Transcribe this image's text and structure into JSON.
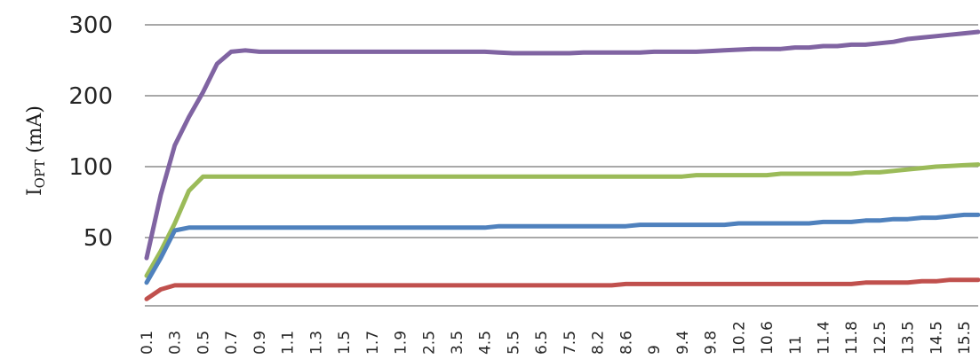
{
  "chart_data": {
    "type": "line",
    "title": "",
    "xlabel": "",
    "ylabel": "I",
    "ylabel_subscript": "OPT",
    "ylabel_unit": " (mA)",
    "grid": true,
    "legend": "none",
    "y_ticks": [
      "50",
      "100",
      "200",
      "300"
    ],
    "categories": [
      "0.1",
      "0.2",
      "0.3",
      "0.4",
      "0.5",
      "0.6",
      "0.7",
      "0.8",
      "0.9",
      "1",
      "1.1",
      "1.2",
      "1.3",
      "1.4",
      "1.5",
      "1.6",
      "1.7",
      "1.8",
      "1.9",
      "2",
      "2.5",
      "3",
      "3.5",
      "4",
      "4.5",
      "5",
      "5.5",
      "6",
      "6.5",
      "7",
      "7.5",
      "8",
      "8.2",
      "8.4",
      "8.6",
      "8.8",
      "9",
      "9.2",
      "9.4",
      "9.6",
      "9.8",
      "10",
      "10.2",
      "10.4",
      "10.6",
      "10.8",
      "11",
      "11.2",
      "11.4",
      "11.6",
      "11.8",
      "12",
      "12.5",
      "13",
      "13.5",
      "14",
      "14.5",
      "15",
      "15.5",
      "16"
    ],
    "x_tick_labels": [
      "0.1",
      "0.3",
      "0.5",
      "0.7",
      "0.9",
      "1.1",
      "1.3",
      "1.5",
      "1.7",
      "1.9",
      "2.5",
      "3.5",
      "4.5",
      "5.5",
      "6.5",
      "7.5",
      "8.2",
      "8.6",
      "9",
      "9.4",
      "9.8",
      "10.2",
      "10.6",
      "11",
      "11.4",
      "11.8",
      "12.5",
      "13.5",
      "14.5",
      "15.5"
    ],
    "series": [
      {
        "color": "#8064a2",
        "values": [
          35,
          80,
          130,
          170,
          205,
          245,
          262,
          264,
          262,
          262,
          262,
          262,
          262,
          262,
          262,
          262,
          262,
          262,
          262,
          262,
          262,
          262,
          262,
          262,
          262,
          261,
          260,
          260,
          260,
          260,
          260,
          261,
          261,
          261,
          261,
          261,
          262,
          262,
          262,
          262,
          263,
          264,
          265,
          266,
          266,
          266,
          268,
          268,
          270,
          270,
          272,
          272,
          274,
          276,
          280,
          282,
          284,
          286,
          288,
          290
        ]
      },
      {
        "color": "#9bbb59",
        "values": [
          22,
          40,
          60,
          83,
          93,
          93,
          93,
          93,
          93,
          93,
          93,
          93,
          93,
          93,
          93,
          93,
          93,
          93,
          93,
          93,
          93,
          93,
          93,
          93,
          93,
          93,
          93,
          93,
          93,
          93,
          93,
          93,
          93,
          93,
          93,
          93,
          93,
          93,
          93,
          94,
          94,
          94,
          94,
          94,
          94,
          95,
          95,
          95,
          95,
          95,
          95,
          96,
          96,
          97,
          98,
          99,
          100,
          101,
          102,
          103
        ]
      },
      {
        "color": "#4f81bd",
        "values": [
          17,
          35,
          55,
          57,
          57,
          57,
          57,
          57,
          57,
          57,
          57,
          57,
          57,
          57,
          57,
          57,
          57,
          57,
          57,
          57,
          57,
          57,
          57,
          57,
          57,
          58,
          58,
          58,
          58,
          58,
          58,
          58,
          58,
          58,
          58,
          59,
          59,
          59,
          59,
          59,
          59,
          59,
          60,
          60,
          60,
          60,
          60,
          60,
          61,
          61,
          61,
          62,
          62,
          63,
          63,
          64,
          64,
          65,
          66,
          66
        ]
      },
      {
        "color": "#c0504d",
        "values": [
          5,
          12,
          15,
          15,
          15,
          15,
          15,
          15,
          15,
          15,
          15,
          15,
          15,
          15,
          15,
          15,
          15,
          15,
          15,
          15,
          15,
          15,
          15,
          15,
          15,
          15,
          15,
          15,
          15,
          15,
          15,
          15,
          15,
          15,
          16,
          16,
          16,
          16,
          16,
          16,
          16,
          16,
          16,
          16,
          16,
          16,
          16,
          16,
          16,
          16,
          16,
          17,
          17,
          17,
          17,
          18,
          18,
          19,
          19,
          19
        ]
      }
    ]
  }
}
